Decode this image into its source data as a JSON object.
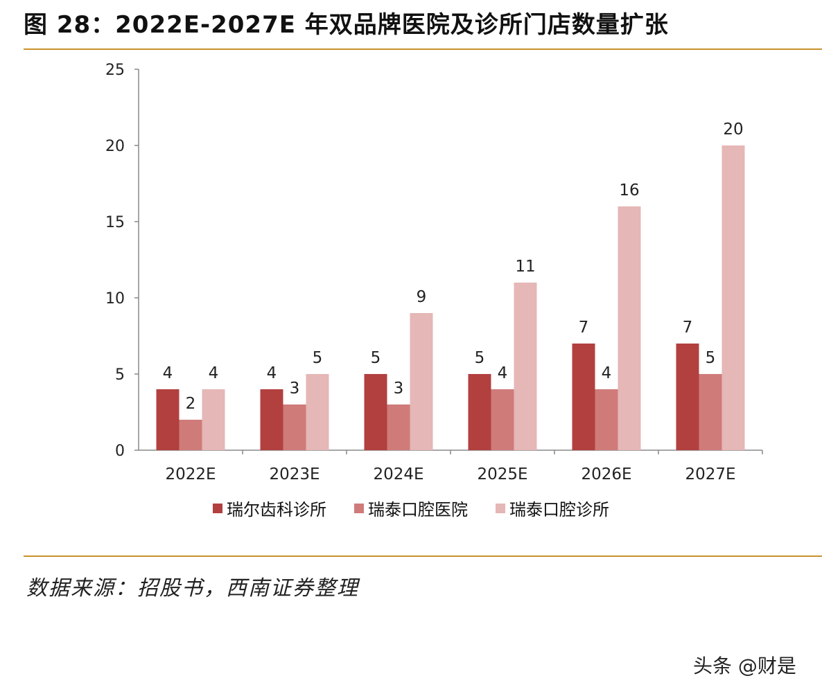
{
  "header": {
    "title": "图 28：2022E-2027E 年双品牌医院及诊所门店数量扩张"
  },
  "footer": {
    "source": "数据来源：招股书，西南证券整理",
    "watermark": "头条 @财是"
  },
  "colors": {
    "rule": "#c8902c"
  },
  "chart_data": {
    "type": "bar",
    "title": "图 28：2022E-2027E 年双品牌医院及诊所门店数量扩张",
    "categories": [
      "2022E",
      "2023E",
      "2024E",
      "2025E",
      "2026E",
      "2027E"
    ],
    "series": [
      {
        "name": "瑞尔齿科诊所",
        "color": "#b2403f",
        "values": [
          4,
          4,
          5,
          5,
          7,
          7
        ]
      },
      {
        "name": "瑞泰口腔医院",
        "color": "#cf7b7a",
        "values": [
          2,
          3,
          3,
          4,
          4,
          5
        ]
      },
      {
        "name": "瑞泰口腔诊所",
        "color": "#e5b7b6",
        "values": [
          4,
          5,
          9,
          11,
          16,
          20
        ]
      }
    ],
    "ylim": [
      0,
      25
    ],
    "yticks": [
      0,
      5,
      10,
      15,
      20,
      25
    ],
    "xlabel": "",
    "ylabel": "",
    "legend": "bottom-center",
    "grid": false
  }
}
